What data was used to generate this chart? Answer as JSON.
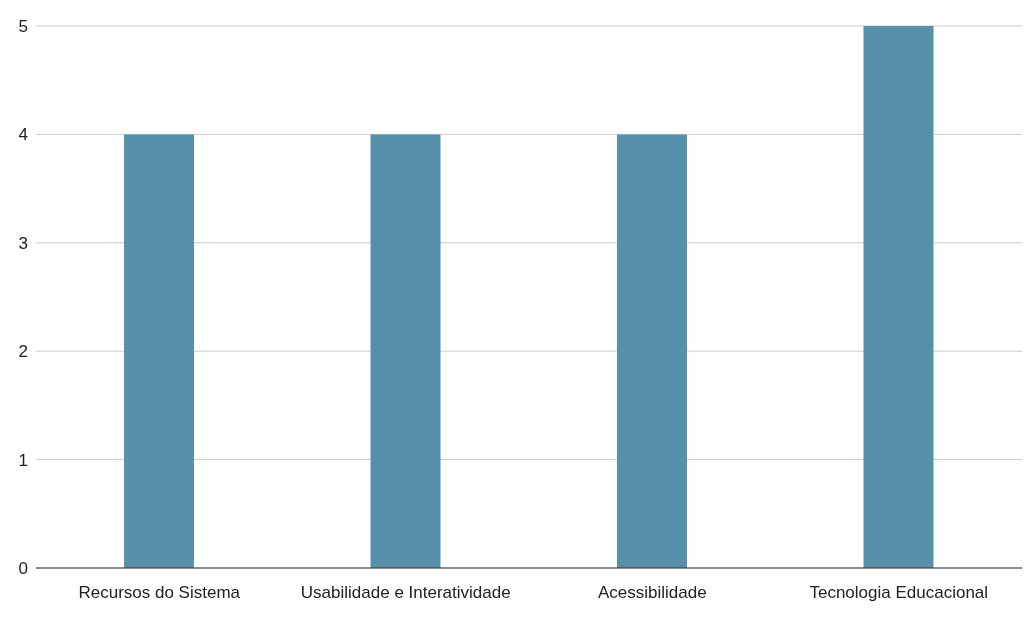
{
  "chart_data": {
    "type": "bar",
    "categories": [
      "Recursos do Sistema",
      "Usabilidade e Interatividade",
      "Acessibilidade",
      "Tecnologia Educacional"
    ],
    "values": [
      4,
      4,
      4,
      5
    ],
    "color": "#5790ab",
    "ylim": [
      0,
      5
    ],
    "yticks": [
      0,
      1,
      2,
      3,
      4,
      5
    ],
    "grid": "y"
  }
}
